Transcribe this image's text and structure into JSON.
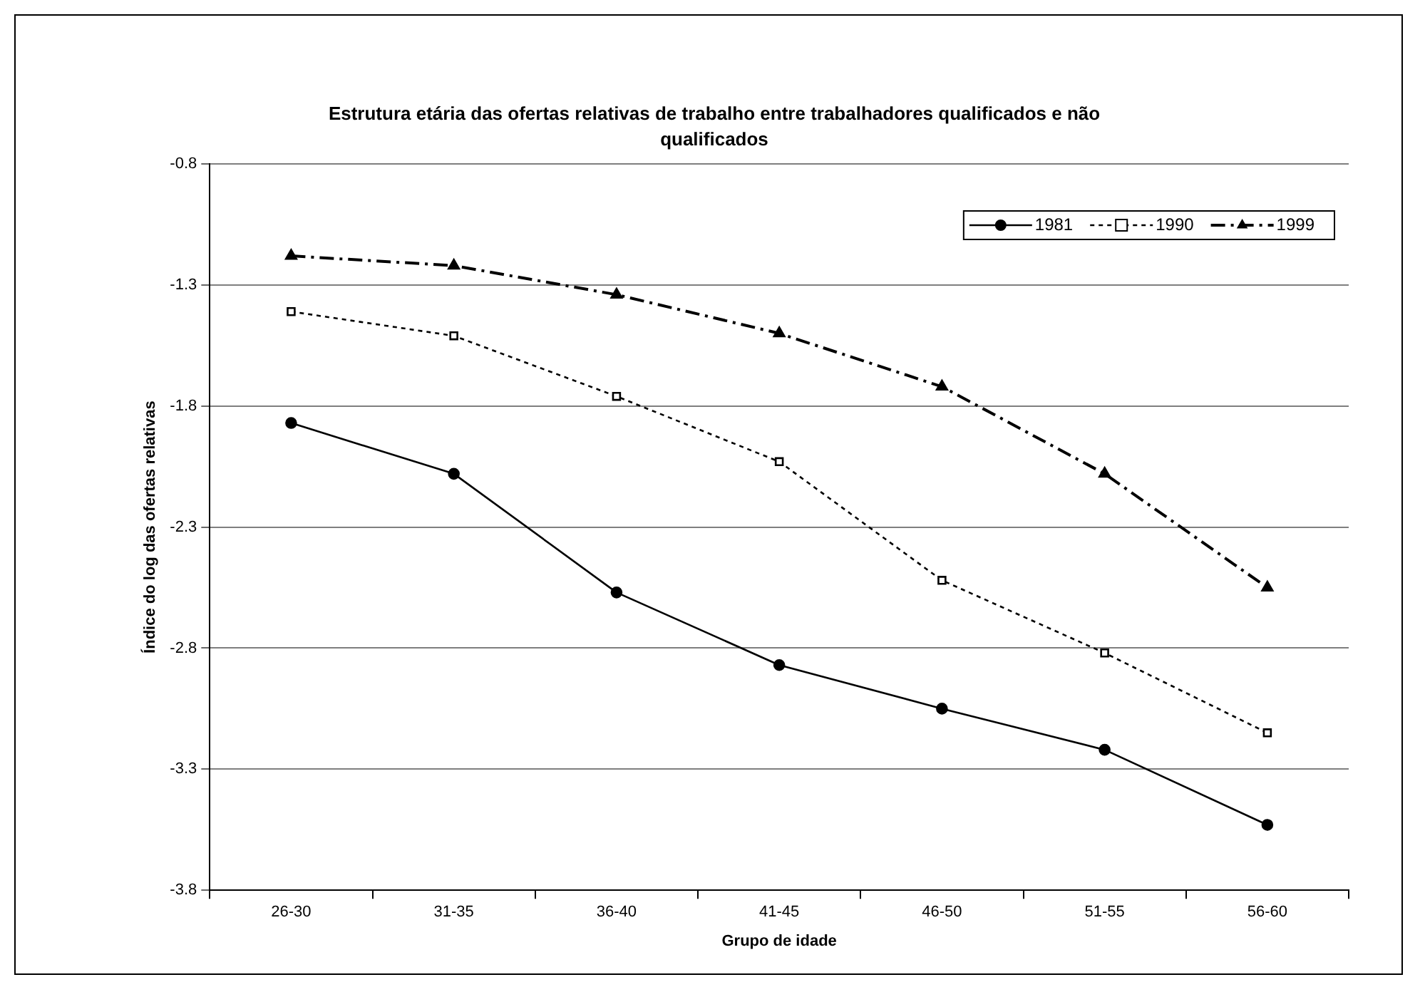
{
  "chart_data": {
    "type": "line",
    "title": "Estrutura etária das ofertas relativas de trabalho entre trabalhadores qualificados e não qualificados",
    "xlabel": "Grupo de idade",
    "ylabel": "Índice do log das ofertas relativas",
    "categories": [
      "26-30",
      "31-35",
      "36-40",
      "41-45",
      "46-50",
      "51-55",
      "56-60"
    ],
    "ylim": [
      -3.8,
      -0.8
    ],
    "yticks": [
      -3.8,
      -3.3,
      -2.8,
      -2.3,
      -1.8,
      -1.3,
      -0.8
    ],
    "grid": "y",
    "legend": "top right",
    "series": [
      {
        "name": "1981",
        "color": "#000000",
        "marker": "circle",
        "line_style": "solid",
        "values": [
          -1.87,
          -2.08,
          -2.57,
          -2.87,
          -3.05,
          -3.22,
          -3.53
        ]
      },
      {
        "name": "1990",
        "color": "#000000",
        "marker": "square",
        "line_style": "dotted",
        "values": [
          -1.41,
          -1.51,
          -1.76,
          -2.03,
          -2.52,
          -2.82,
          -3.15
        ]
      },
      {
        "name": "1999",
        "color": "#000000",
        "marker": "triangle",
        "line_style": "dashed",
        "values": [
          -1.18,
          -1.22,
          -1.34,
          -1.5,
          -1.72,
          -2.08,
          -2.55
        ]
      }
    ]
  }
}
